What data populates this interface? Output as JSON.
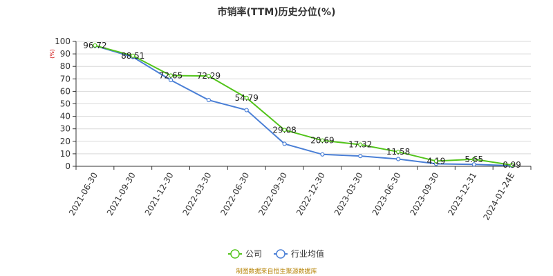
{
  "chart_data": {
    "type": "line",
    "title": "市销率(TTM)历史分位(%)",
    "ylabel_unit": "(%)",
    "ylim": [
      0,
      100
    ],
    "yticks": [
      0,
      10,
      20,
      30,
      40,
      50,
      60,
      70,
      80,
      90,
      100
    ],
    "categories": [
      "2021-06-30",
      "2021-09-30",
      "2021-12-30",
      "2022-03-30",
      "2022-06-30",
      "2022-09-30",
      "2022-12-30",
      "2023-03-30",
      "2023-06-30",
      "2023-09-30",
      "2023-12-31",
      "2024-01-24E"
    ],
    "series": [
      {
        "name": "公司",
        "color": "#52c41a",
        "values": [
          96.72,
          88.51,
          72.65,
          72.29,
          54.79,
          29.08,
          20.69,
          17.32,
          11.58,
          4.19,
          5.65,
          0.99
        ],
        "labels": [
          "96.72",
          "88.51",
          "72.65",
          "72.29",
          "54.79",
          "29.08",
          "20.69",
          "17.32",
          "11.58",
          "4.19",
          "5.65",
          "0.99"
        ]
      },
      {
        "name": "行业均值",
        "color": "#4a7fd6",
        "values": [
          96.5,
          87.5,
          69,
          53,
          45,
          18,
          9.5,
          8.2,
          5.8,
          2,
          1.5,
          0.5
        ]
      }
    ],
    "grid": true,
    "legend": "bottom-center",
    "source": "制图数据来自恒生聚源数据库"
  }
}
